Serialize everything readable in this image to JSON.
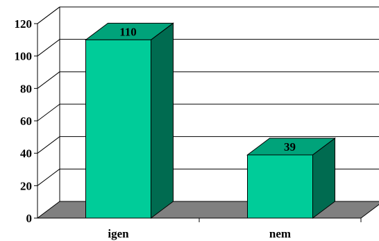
{
  "chart_data": {
    "type": "bar",
    "categories": [
      "igen",
      "nem"
    ],
    "values": [
      110,
      39
    ],
    "data_labels": [
      "110",
      "39"
    ],
    "title": "",
    "xlabel": "",
    "ylabel": "",
    "ylim": [
      0,
      120
    ],
    "y_ticks": [
      "0",
      "20",
      "40",
      "60",
      "80",
      "100",
      "120"
    ],
    "grid": true,
    "legend": "none",
    "style": "3d-column",
    "colors": {
      "bar_front": "#00CC99",
      "bar_top": "#00A37A",
      "bar_side": "#006B50",
      "floor": "#808080",
      "gridline": "#000000",
      "background": "#FFFFFF"
    }
  }
}
